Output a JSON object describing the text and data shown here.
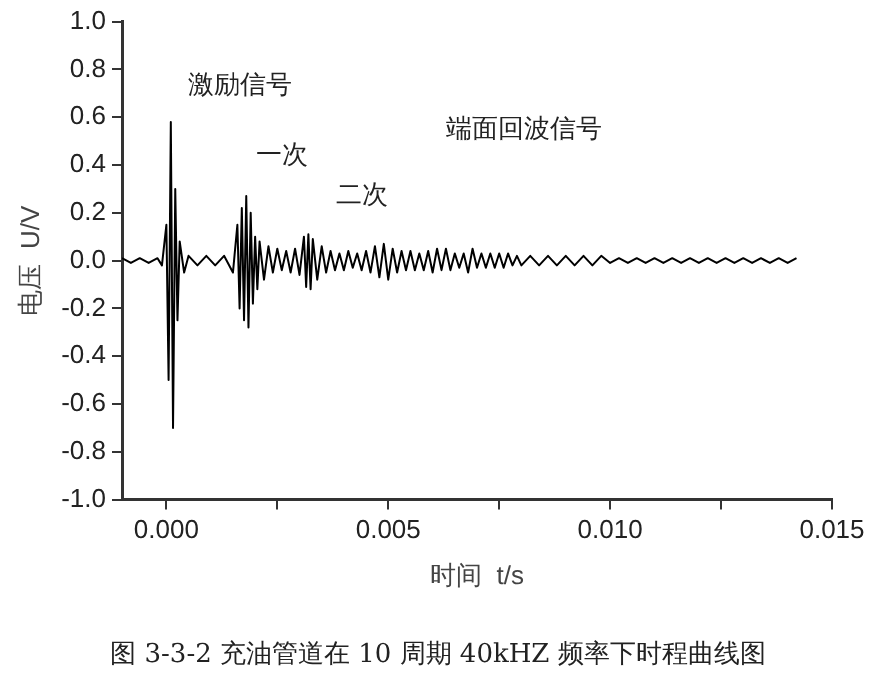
{
  "chart_data": {
    "type": "line",
    "xlabel": "时间  t/s",
    "ylabel": "电压  U/V",
    "xlim": [
      -0.001,
      0.015
    ],
    "xticks": [
      {
        "value": 0,
        "label": "0.000"
      },
      {
        "value": 0.0025,
        "label": null
      },
      {
        "value": 0.005,
        "label": "0.005"
      },
      {
        "value": 0.0075,
        "label": null
      },
      {
        "value": 0.01,
        "label": "0.010"
      },
      {
        "value": 0.0125,
        "label": null
      },
      {
        "value": 0.015,
        "label": "0.015"
      }
    ],
    "ylim": [
      -1,
      1
    ],
    "yticks": [
      {
        "value": -1,
        "label": "-1.0"
      },
      {
        "value": -0.8,
        "label": "-0.8"
      },
      {
        "value": -0.6,
        "label": "-0.6"
      },
      {
        "value": -0.4,
        "label": "-0.4"
      },
      {
        "value": -0.2,
        "label": "-0.2"
      },
      {
        "value": 0,
        "label": "0.0"
      },
      {
        "value": 0.2,
        "label": "0.2"
      },
      {
        "value": 0.4,
        "label": "0.4"
      },
      {
        "value": 0.6,
        "label": "0.6"
      },
      {
        "value": 0.8,
        "label": "0.8"
      },
      {
        "value": 1,
        "label": "1.0"
      }
    ],
    "grid": false,
    "legend": false,
    "marker": "none",
    "line_style": "solid",
    "series": [
      {
        "color": "#000000",
        "x": [
          -0.001,
          -0.0008,
          -0.0006,
          -0.0004,
          -0.0002,
          -0.0001,
          0.0,
          5e-05,
          0.0001,
          0.00015,
          0.0002,
          0.00025,
          0.0003,
          0.0004,
          0.0005,
          0.0007,
          0.0009,
          0.0011,
          0.0013,
          0.0015,
          0.0016,
          0.00165,
          0.0017,
          0.00175,
          0.0018,
          0.00185,
          0.0019,
          0.00195,
          0.002,
          0.00205,
          0.0021,
          0.0022,
          0.0023,
          0.0024,
          0.0025,
          0.0026,
          0.0027,
          0.0028,
          0.0029,
          0.003,
          0.0031,
          0.00315,
          0.0032,
          0.00325,
          0.0033,
          0.0034,
          0.0035,
          0.0036,
          0.0037,
          0.0038,
          0.0039,
          0.004,
          0.0041,
          0.0042,
          0.0043,
          0.0044,
          0.0045,
          0.0046,
          0.0047,
          0.0048,
          0.0049,
          0.005,
          0.0051,
          0.0052,
          0.0053,
          0.0054,
          0.0055,
          0.0056,
          0.0057,
          0.0058,
          0.0059,
          0.006,
          0.0061,
          0.0062,
          0.0063,
          0.0064,
          0.0065,
          0.0066,
          0.0067,
          0.0068,
          0.0069,
          0.007,
          0.0071,
          0.0072,
          0.0073,
          0.0074,
          0.0075,
          0.0076,
          0.0077,
          0.0078,
          0.0079,
          0.008,
          0.0082,
          0.0084,
          0.0086,
          0.0088,
          0.009,
          0.0092,
          0.0094,
          0.0096,
          0.0098,
          0.01,
          0.0102,
          0.0104,
          0.0106,
          0.0108,
          0.011,
          0.0112,
          0.0114,
          0.0116,
          0.0118,
          0.012,
          0.0122,
          0.0124,
          0.0126,
          0.0128,
          0.013,
          0.0132,
          0.0134,
          0.0136,
          0.0138,
          0.014,
          0.0142
        ],
        "values": [
          0.01,
          -0.01,
          0.01,
          -0.01,
          0.01,
          -0.02,
          0.15,
          -0.5,
          0.58,
          -0.7,
          0.3,
          -0.25,
          0.08,
          -0.05,
          0.02,
          -0.02,
          0.02,
          -0.02,
          0.02,
          -0.05,
          0.15,
          -0.2,
          0.22,
          -0.25,
          0.27,
          -0.28,
          0.2,
          -0.18,
          0.1,
          -0.12,
          0.08,
          -0.08,
          0.06,
          -0.05,
          0.05,
          -0.04,
          0.04,
          -0.05,
          0.05,
          -0.06,
          0.1,
          -0.11,
          0.11,
          -0.12,
          0.09,
          -0.08,
          0.06,
          -0.05,
          0.04,
          -0.04,
          0.03,
          -0.04,
          0.04,
          -0.03,
          0.03,
          -0.04,
          0.04,
          -0.05,
          0.06,
          -0.07,
          0.07,
          -0.08,
          0.05,
          -0.05,
          0.04,
          -0.04,
          0.04,
          -0.04,
          0.03,
          -0.04,
          0.04,
          -0.05,
          0.05,
          -0.04,
          0.05,
          -0.04,
          0.03,
          -0.03,
          0.03,
          -0.05,
          0.05,
          -0.03,
          0.03,
          -0.03,
          0.03,
          -0.03,
          0.03,
          -0.03,
          0.03,
          -0.02,
          0.02,
          -0.02,
          0.02,
          -0.02,
          0.02,
          -0.02,
          0.02,
          -0.02,
          0.02,
          -0.02,
          0.02,
          -0.01,
          0.01,
          -0.01,
          0.01,
          -0.01,
          0.01,
          -0.01,
          0.01,
          -0.01,
          0.01,
          -0.01,
          0.01,
          -0.01,
          0.01,
          -0.01,
          0.01,
          -0.01,
          0.01,
          -0.01,
          0.01,
          -0.01,
          0.01
        ]
      }
    ],
    "annotations": [
      "激励信号",
      "一次",
      "二次",
      "端面回波信号",
      "图 3-3-2 充油管道在 10 周期 40kHZ 频率下时程曲线图"
    ]
  }
}
